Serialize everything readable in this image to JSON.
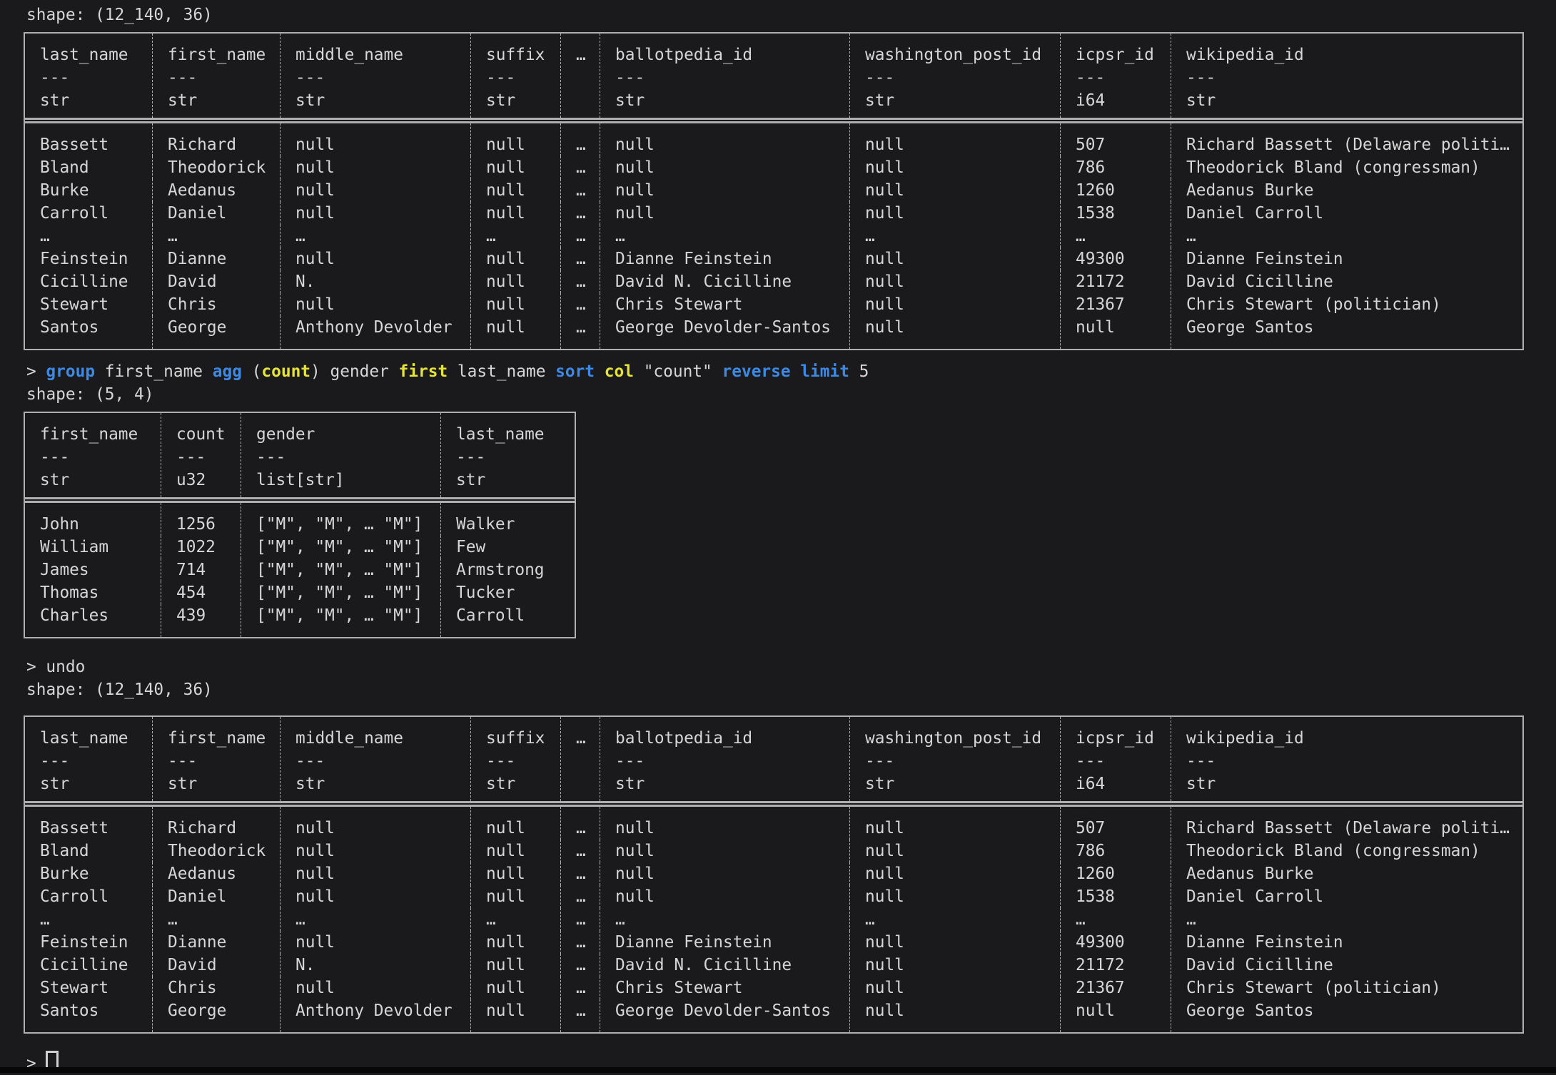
{
  "terminal": {
    "prompt_symbol": ">",
    "shape_line_1": "shape: (12_140, 36)",
    "shape_line_2": "shape: (5, 4)",
    "shape_line_3": "shape: (12_140, 36)",
    "command": {
      "tokens": [
        {
          "text": "group",
          "style": "keyword"
        },
        {
          "text": " first_name ",
          "style": "plain"
        },
        {
          "text": "agg",
          "style": "keyword"
        },
        {
          "text": " (",
          "style": "plain"
        },
        {
          "text": "count",
          "style": "function"
        },
        {
          "text": ") gender ",
          "style": "plain"
        },
        {
          "text": "first",
          "style": "function"
        },
        {
          "text": " last_name ",
          "style": "plain"
        },
        {
          "text": "sort",
          "style": "keyword"
        },
        {
          "text": " ",
          "style": "plain"
        },
        {
          "text": "col",
          "style": "function"
        },
        {
          "text": " \"count\" ",
          "style": "plain"
        },
        {
          "text": "reverse",
          "style": "keyword"
        },
        {
          "text": " ",
          "style": "plain"
        },
        {
          "text": "limit",
          "style": "keyword"
        },
        {
          "text": " 5",
          "style": "plain"
        }
      ]
    },
    "undo_line": {
      "tokens": [
        {
          "text": "undo",
          "style": "plain"
        }
      ]
    },
    "colors": {
      "background": "#1a1a1c",
      "text": "#d6d6d6",
      "border": "#b0b0b0",
      "keyword": "#3d8ae6",
      "function": "#e6e33c"
    }
  },
  "tables": {
    "politicians": {
      "columns": [
        {
          "name": "last_name",
          "dtype": "str"
        },
        {
          "name": "first_name",
          "dtype": "str"
        },
        {
          "name": "middle_name",
          "dtype": "str"
        },
        {
          "name": "suffix",
          "dtype": "str"
        },
        {
          "name": "…",
          "dtype": ""
        },
        {
          "name": "ballotpedia_id",
          "dtype": "str"
        },
        {
          "name": "washington_post_id",
          "dtype": "str"
        },
        {
          "name": "icpsr_id",
          "dtype": "i64"
        },
        {
          "name": "wikipedia_id",
          "dtype": "str"
        }
      ],
      "rows": [
        [
          "Bassett",
          "Richard",
          "null",
          "null",
          "…",
          "null",
          "null",
          "507",
          "Richard Bassett (Delaware politi…"
        ],
        [
          "Bland",
          "Theodorick",
          "null",
          "null",
          "…",
          "null",
          "null",
          "786",
          "Theodorick Bland (congressman)"
        ],
        [
          "Burke",
          "Aedanus",
          "null",
          "null",
          "…",
          "null",
          "null",
          "1260",
          "Aedanus Burke"
        ],
        [
          "Carroll",
          "Daniel",
          "null",
          "null",
          "…",
          "null",
          "null",
          "1538",
          "Daniel Carroll"
        ],
        [
          "…",
          "…",
          "…",
          "…",
          "…",
          "…",
          "…",
          "…",
          "…"
        ],
        [
          "Feinstein",
          "Dianne",
          "null",
          "null",
          "…",
          "Dianne Feinstein",
          "null",
          "49300",
          "Dianne Feinstein"
        ],
        [
          "Cicilline",
          "David",
          "N.",
          "null",
          "…",
          "David N. Cicilline",
          "null",
          "21172",
          "David Cicilline"
        ],
        [
          "Stewart",
          "Chris",
          "null",
          "null",
          "…",
          "Chris Stewart",
          "null",
          "21367",
          "Chris Stewart (politician)"
        ],
        [
          "Santos",
          "George",
          "Anthony Devolder",
          "null",
          "…",
          "George Devolder-Santos",
          "null",
          "null",
          "George Santos"
        ]
      ]
    },
    "grouped": {
      "columns": [
        {
          "name": "first_name",
          "dtype": "str"
        },
        {
          "name": "count",
          "dtype": "u32"
        },
        {
          "name": "gender",
          "dtype": "list[str]"
        },
        {
          "name": "last_name",
          "dtype": "str"
        }
      ],
      "rows": [
        [
          "John",
          "1256",
          "[\"M\", \"M\", … \"M\"]",
          "Walker"
        ],
        [
          "William",
          "1022",
          "[\"M\", \"M\", … \"M\"]",
          "Few"
        ],
        [
          "James",
          "714",
          "[\"M\", \"M\", … \"M\"]",
          "Armstrong"
        ],
        [
          "Thomas",
          "454",
          "[\"M\", \"M\", … \"M\"]",
          "Tucker"
        ],
        [
          "Charles",
          "439",
          "[\"M\", \"M\", … \"M\"]",
          "Carroll"
        ]
      ]
    }
  }
}
